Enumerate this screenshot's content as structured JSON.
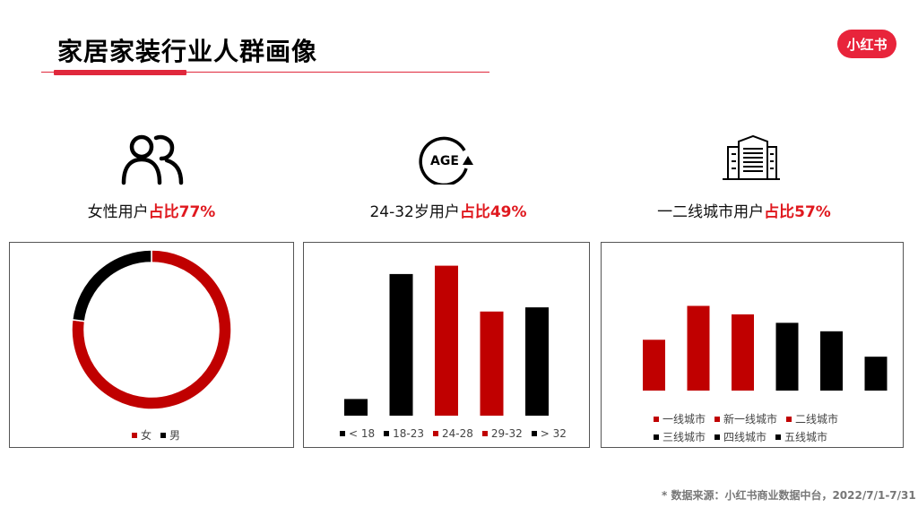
{
  "header": {
    "title": "家居家装行业人群画像",
    "logo_text": "小红书"
  },
  "stats": [
    {
      "prefix": "女性用户",
      "highlight": "占比77%",
      "icon": "people-icon"
    },
    {
      "prefix": "24-32岁用户",
      "highlight": "占比49%",
      "icon": "age-icon",
      "icon_text": "AGE"
    },
    {
      "prefix": "一二线城市用户",
      "highlight": "占比57%",
      "icon": "building-icon"
    }
  ],
  "colors": {
    "red": "#c00000",
    "black": "#000000",
    "accent": "#e0283c"
  },
  "chart_data": [
    {
      "type": "pie",
      "categories": [
        "女",
        "男"
      ],
      "values": [
        77,
        23
      ],
      "colors": [
        "#c00000",
        "#000000"
      ],
      "donut": true,
      "legend": "bottom"
    },
    {
      "type": "bar",
      "categories": [
        "< 18",
        "18-23",
        "24-28",
        "29-32",
        "> 32"
      ],
      "values": [
        4,
        34,
        36,
        25,
        26
      ],
      "colors": [
        "#000000",
        "#000000",
        "#c00000",
        "#c00000",
        "#000000"
      ],
      "ylim": [
        0,
        40
      ],
      "legend": "bottom"
    },
    {
      "type": "bar",
      "categories": [
        "一线城市",
        "新一线城市",
        "二线城市",
        "三线城市",
        "四线城市",
        "五线城市"
      ],
      "values": [
        12,
        20,
        18,
        16,
        14,
        8
      ],
      "colors": [
        "#c00000",
        "#c00000",
        "#c00000",
        "#000000",
        "#000000",
        "#000000"
      ],
      "ylim": [
        0,
        22
      ],
      "legend": "bottom"
    }
  ],
  "footer": {
    "source": "* 数据来源：小红书商业数据中台，2022/7/1-7/31"
  }
}
